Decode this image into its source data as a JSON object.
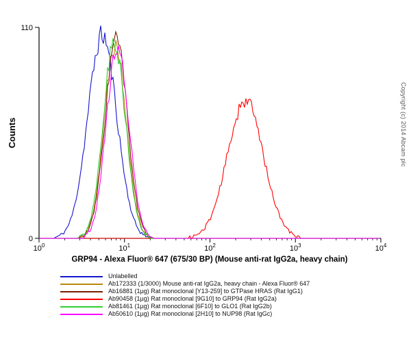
{
  "copyright": "Copyright (c) 2014 Abcam plc",
  "chart_data": {
    "type": "line",
    "subtype": "flow-cytometry-histogram",
    "title": "",
    "xlabel": "GRP94 - Alexa Fluor® 647 (675/30 BP) (Mouse anti-rat IgG2a, heavy chain)",
    "ylabel": "Counts",
    "x_scale": "log10",
    "xlim_exp": [
      0,
      4
    ],
    "ylim": [
      0,
      110
    ],
    "y_ticks": [
      0,
      110
    ],
    "x_ticks": [
      {
        "base": "10",
        "exp": "0"
      },
      {
        "base": "10",
        "exp": "1"
      },
      {
        "base": "10",
        "exp": "2"
      },
      {
        "base": "10",
        "exp": "3"
      },
      {
        "base": "10",
        "exp": "4"
      }
    ],
    "grid": false,
    "legend_position": "bottom-left",
    "axis_color": "#000000",
    "series": [
      {
        "name": "Unlabelled",
        "color": "#1414cc",
        "peak_x": 5.5,
        "peak_y": 106,
        "sigma_log": 0.17,
        "seed": 11
      },
      {
        "name": "Ab172333 (1/3000) Mouse anti-rat IgG2a, heavy chain - Alexa Fluor® 647",
        "color": "#b8860b",
        "peak_x": 7.8,
        "peak_y": 102,
        "sigma_log": 0.13,
        "seed": 22
      },
      {
        "name": "Ab16881 (1µg) Rat monoclonal [Y13-259] to GTPase HRAS (Rat IgG1)",
        "color": "#7a1f00",
        "peak_x": 8.0,
        "peak_y": 104,
        "sigma_log": 0.13,
        "seed": 33
      },
      {
        "name": "Ab90458 (1µg) Rat monoclonal [9G10] to GRP94 (Rat IgG2a)",
        "color": "#ff0000",
        "peak_x": 260,
        "peak_y": 72,
        "sigma_log": 0.21,
        "seed": 44
      },
      {
        "name": "Ab81461 (1µg) Rat monoclonal [6F10] to GLO1 (Rat IgG2b)",
        "color": "#33cc33",
        "peak_x": 7.6,
        "peak_y": 103,
        "sigma_log": 0.13,
        "seed": 55
      },
      {
        "name": "Ab50610 (1µg) Rat monoclonal [2H10] to NUP98 (Rat IgGc)",
        "color": "#ff00ff",
        "peak_x": 8.3,
        "peak_y": 101,
        "sigma_log": 0.13,
        "seed": 66
      }
    ]
  }
}
